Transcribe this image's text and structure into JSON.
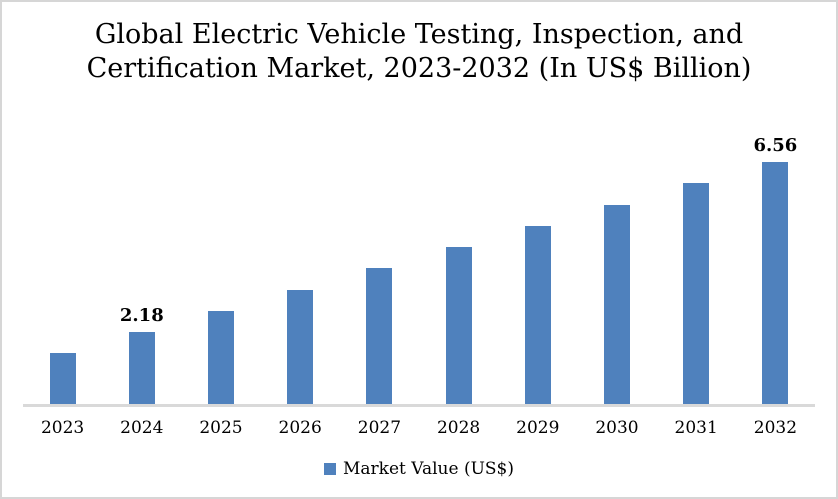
{
  "page": {
    "background": "#ffffff",
    "border_color": "#d6d6d6"
  },
  "title_lines": [
    "Global Electric Vehicle Testing, Inspection, and",
    "Certification Market, 2023-2032 (In US$ Billion)"
  ],
  "legend": {
    "marker_color": "#4f81bd",
    "label": "Market Value (US$)"
  },
  "chart_data": {
    "type": "bar",
    "title": "Global Electric Vehicle Testing, Inspection, and Certification Market, 2023-2032 (In US$ Billion)",
    "categories": [
      "2023",
      "2024",
      "2025",
      "2026",
      "2027",
      "2028",
      "2029",
      "2030",
      "2031",
      "2032"
    ],
    "series": [
      {
        "name": "Market Value (US$)",
        "values": [
          1.63,
          2.18,
          2.73,
          3.27,
          3.82,
          4.37,
          4.92,
          5.46,
          6.01,
          6.56
        ]
      }
    ],
    "data_labels": [
      "",
      "2.18",
      "",
      "",
      "",
      "",
      "",
      "",
      "",
      "6.56"
    ],
    "bar_color": "#4f81bd",
    "axis_line_color": "#d9d9d9",
    "grid": false,
    "y_axis_visible": false,
    "x_axis_visible": true,
    "legend_position": "bottom"
  }
}
